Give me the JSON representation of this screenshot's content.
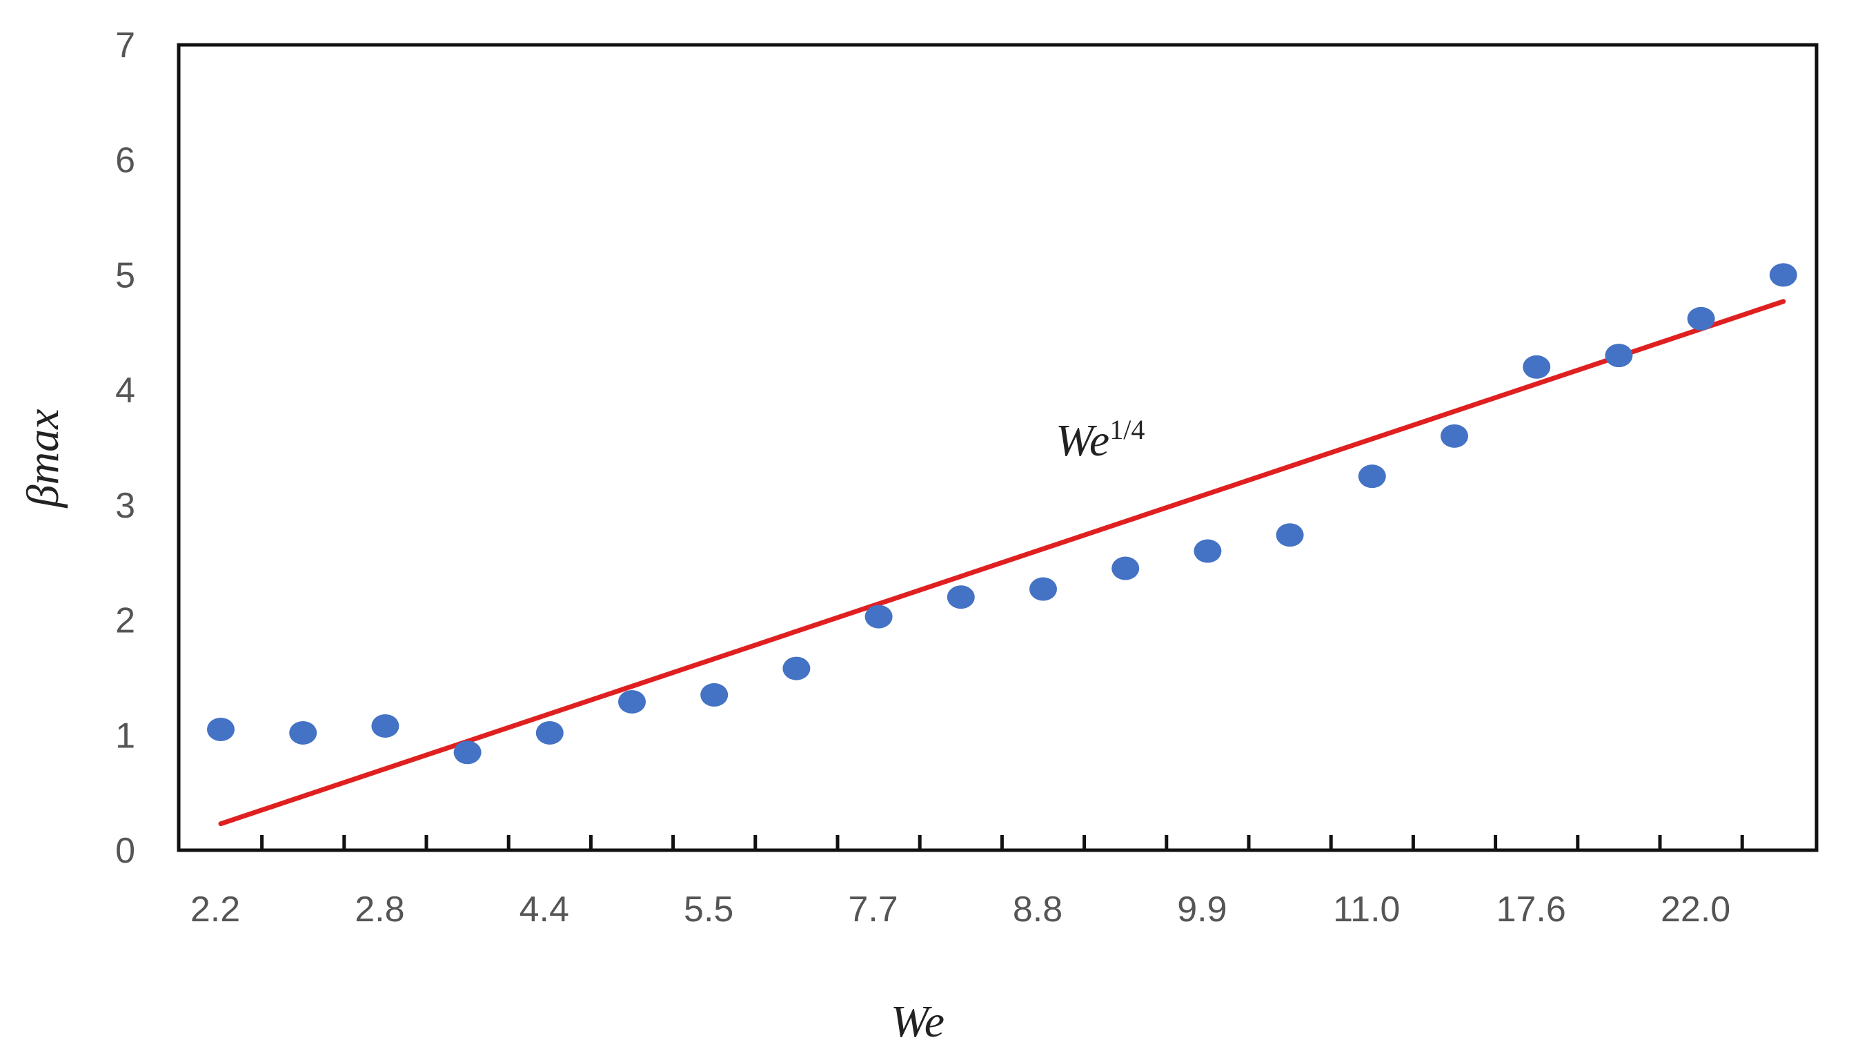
{
  "chart_data": {
    "type": "scatter",
    "xlabel": "We",
    "ylabel": "βmax",
    "x_tick_labels": [
      "2.2",
      "2.8",
      "4.4",
      "5.5",
      "7.7",
      "8.8",
      "9.9",
      "11.0",
      "17.6",
      "22.0"
    ],
    "ylim": [
      0,
      7
    ],
    "y_ticks": [
      0,
      1,
      2,
      3,
      4,
      5,
      6,
      7
    ],
    "grid": false,
    "series": [
      {
        "type": "scatter",
        "color": "#4472C4",
        "values": [
          1.05,
          1.02,
          1.08,
          0.85,
          1.02,
          1.29,
          1.35,
          1.58,
          2.03,
          2.2,
          2.27,
          2.45,
          2.6,
          2.74,
          3.25,
          3.6,
          4.2,
          4.3,
          4.62,
          5.0
        ]
      },
      {
        "type": "line",
        "color": "#E02020",
        "start": 0.23,
        "end": 4.77
      }
    ],
    "annotation": {
      "base": "We",
      "superscript": "1/4"
    }
  }
}
